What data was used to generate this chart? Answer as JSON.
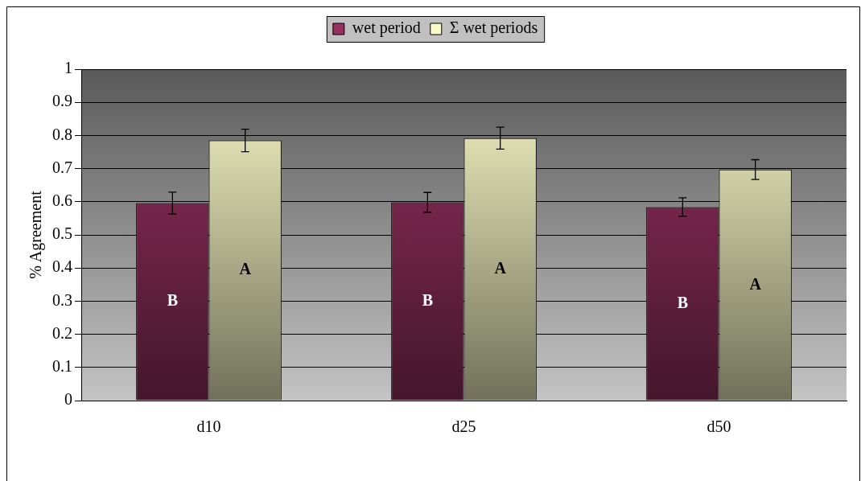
{
  "chart_data": {
    "type": "bar",
    "ylabel": "% Agreement",
    "categories": [
      "d10",
      "d25",
      "d50"
    ],
    "series": [
      {
        "name": "wet period",
        "color": "#96305f",
        "values": [
          0.596,
          0.598,
          0.584
        ],
        "errors": [
          0.033,
          0.03,
          0.028
        ],
        "value_labels": [
          "B",
          "B",
          "B"
        ]
      },
      {
        "name": "Σ wet periods",
        "color": "#fafac8",
        "values": [
          0.785,
          0.792,
          0.697
        ],
        "errors": [
          0.034,
          0.033,
          0.03
        ],
        "value_labels": [
          "A",
          "A",
          "A"
        ]
      }
    ],
    "ylim": [
      0,
      1
    ],
    "yticks": [
      0,
      0.1,
      0.2,
      0.3,
      0.4,
      0.5,
      0.6,
      0.7,
      0.8,
      0.9,
      1
    ],
    "grid": "y",
    "legend": "top"
  }
}
